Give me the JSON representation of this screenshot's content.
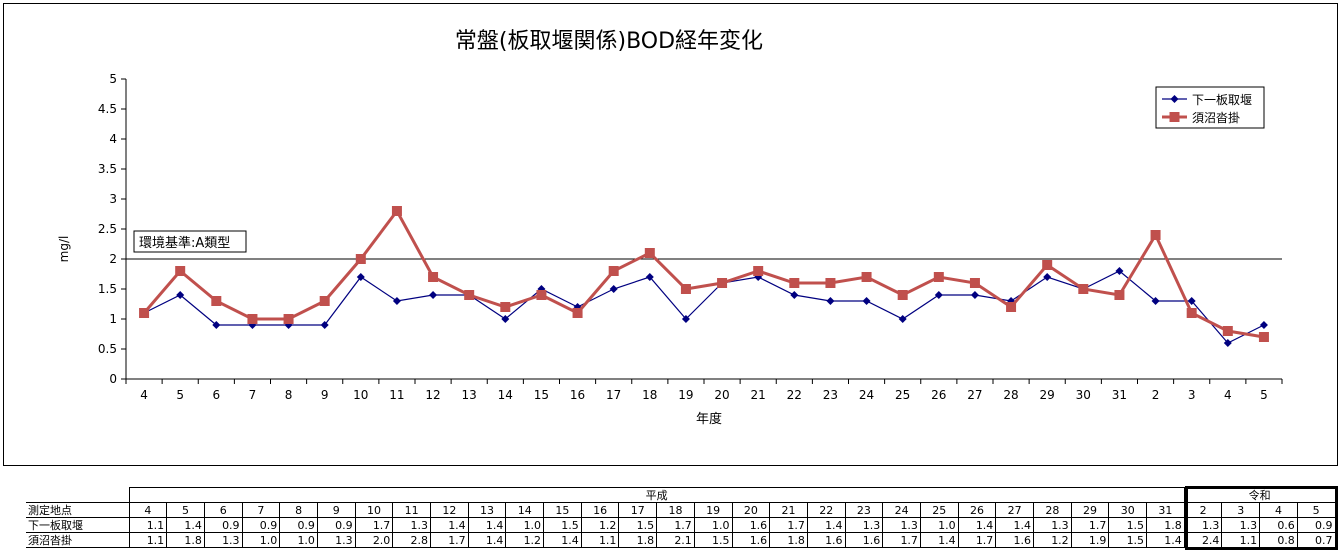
{
  "chart_data": {
    "type": "line",
    "title": "常盤(板取堰関係)BOD経年変化",
    "xlabel": "年度",
    "ylabel": "mg/l",
    "ylim": [
      0,
      5
    ],
    "yticks": [
      "0",
      "0.5",
      "1",
      "1.5",
      "2",
      "2.5",
      "3",
      "3.5",
      "4",
      "4.5",
      "5"
    ],
    "categories": [
      "4",
      "5",
      "6",
      "7",
      "8",
      "9",
      "10",
      "11",
      "12",
      "13",
      "14",
      "15",
      "16",
      "17",
      "18",
      "19",
      "20",
      "21",
      "22",
      "23",
      "24",
      "25",
      "26",
      "27",
      "28",
      "29",
      "30",
      "31",
      "2",
      "3",
      "4",
      "5"
    ],
    "reference_line": {
      "value": 2,
      "label": "環境基準:A類型"
    },
    "legend_position": "top-right",
    "series": [
      {
        "name": "下一板取堰",
        "color": "#000080",
        "marker": "diamond",
        "values": [
          1.1,
          1.4,
          0.9,
          0.9,
          0.9,
          0.9,
          1.7,
          1.3,
          1.4,
          1.4,
          1.0,
          1.5,
          1.2,
          1.5,
          1.7,
          1.0,
          1.6,
          1.7,
          1.4,
          1.3,
          1.3,
          1.0,
          1.4,
          1.4,
          1.3,
          1.7,
          1.5,
          1.8,
          1.3,
          1.3,
          0.6,
          0.9
        ]
      },
      {
        "name": "須沼沓掛",
        "color": "#c0504d",
        "marker": "square",
        "values": [
          1.1,
          1.8,
          1.3,
          1.0,
          1.0,
          1.3,
          2.0,
          2.8,
          1.7,
          1.4,
          1.2,
          1.4,
          1.1,
          1.8,
          2.1,
          1.5,
          1.6,
          1.8,
          1.6,
          1.6,
          1.7,
          1.4,
          1.7,
          1.6,
          1.2,
          1.9,
          1.5,
          1.4,
          2.4,
          1.1,
          0.8,
          0.7
        ]
      }
    ]
  },
  "table": {
    "era_heisei": "平成",
    "era_reiwa": "令和",
    "row_header": "測定地点",
    "years": [
      "4",
      "5",
      "6",
      "7",
      "8",
      "9",
      "10",
      "11",
      "12",
      "13",
      "14",
      "15",
      "16",
      "17",
      "18",
      "19",
      "20",
      "21",
      "22",
      "23",
      "24",
      "25",
      "26",
      "27",
      "28",
      "29",
      "30",
      "31",
      "2",
      "3",
      "4",
      "5"
    ],
    "rows": [
      {
        "label": "下一板取堰",
        "values": [
          "1.1",
          "1.4",
          "0.9",
          "0.9",
          "0.9",
          "0.9",
          "1.7",
          "1.3",
          "1.4",
          "1.4",
          "1.0",
          "1.5",
          "1.2",
          "1.5",
          "1.7",
          "1.0",
          "1.6",
          "1.7",
          "1.4",
          "1.3",
          "1.3",
          "1.0",
          "1.4",
          "1.4",
          "1.3",
          "1.7",
          "1.5",
          "1.8",
          "1.3",
          "1.3",
          "0.6",
          "0.9"
        ]
      },
      {
        "label": "須沼沓掛",
        "values": [
          "1.1",
          "1.8",
          "1.3",
          "1.0",
          "1.0",
          "1.3",
          "2.0",
          "2.8",
          "1.7",
          "1.4",
          "1.2",
          "1.4",
          "1.1",
          "1.8",
          "2.1",
          "1.5",
          "1.6",
          "1.8",
          "1.6",
          "1.6",
          "1.7",
          "1.4",
          "1.7",
          "1.6",
          "1.2",
          "1.9",
          "1.5",
          "1.4",
          "2.4",
          "1.1",
          "0.8",
          "0.7"
        ]
      }
    ]
  }
}
